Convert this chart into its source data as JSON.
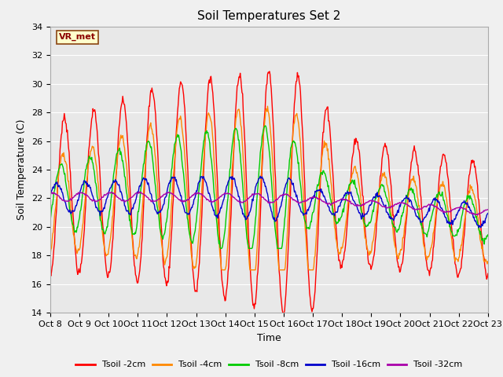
{
  "title": "Soil Temperatures Set 2",
  "xlabel": "Time",
  "ylabel": "Soil Temperature (C)",
  "ylim": [
    14,
    34
  ],
  "xlim": [
    0,
    15
  ],
  "xtick_labels": [
    "Oct 8",
    "Oct 9",
    "Oct 10",
    "Oct 11",
    "Oct 12",
    "Oct 13",
    "Oct 14",
    "Oct 15",
    "Oct 16",
    "Oct 17",
    "Oct 18",
    "Oct 19",
    "Oct 20",
    "Oct 21",
    "Oct 22",
    "Oct 23"
  ],
  "ytick_values": [
    14,
    16,
    18,
    20,
    22,
    24,
    26,
    28,
    30,
    32,
    34
  ],
  "legend_label": "VR_met",
  "series_labels": [
    "Tsoil -2cm",
    "Tsoil -4cm",
    "Tsoil -8cm",
    "Tsoil -16cm",
    "Tsoil -32cm"
  ],
  "series_colors": [
    "#ff0000",
    "#ff8800",
    "#00cc00",
    "#0000cc",
    "#aa00aa"
  ],
  "bg_color": "#e8e8e8",
  "fig_bg": "#f0f0f0",
  "grid_color": "#ffffff",
  "title_fontsize": 11,
  "axis_label_fontsize": 9,
  "tick_fontsize": 8
}
